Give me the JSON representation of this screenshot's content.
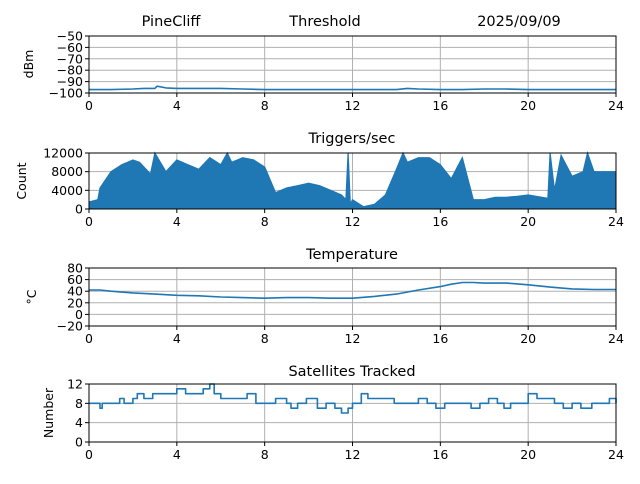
{
  "header": {
    "station": "PineCliff",
    "title": "Threshold",
    "date": "2025/09/09"
  },
  "style": {
    "line_color": "#1f77b4",
    "grid_color": "#b0b0b0"
  },
  "chart_data": [
    {
      "type": "line",
      "title": "",
      "xlabel": "",
      "ylabel": "dBm",
      "xlim": [
        0,
        24
      ],
      "ylim": [
        -100,
        -50
      ],
      "xticks": [
        0,
        4,
        8,
        12,
        16,
        20,
        24
      ],
      "yticks": [
        -100,
        -90,
        -80,
        -70,
        -60,
        -50
      ],
      "yticklabels": [
        "−100",
        "−90",
        "−80",
        "−70",
        "−60",
        "−50"
      ],
      "grid": true,
      "x": [
        0,
        1,
        2,
        2.5,
        3,
        3.1,
        3.5,
        4,
        5,
        6,
        7,
        8,
        9,
        10,
        11,
        12,
        13,
        14,
        14.5,
        15,
        16,
        17,
        18,
        19,
        20,
        21,
        22,
        23,
        24
      ],
      "y": [
        -97,
        -97,
        -96.5,
        -96,
        -96,
        -94,
        -95.5,
        -96,
        -96,
        -96,
        -96.5,
        -97,
        -97,
        -97,
        -97,
        -97,
        -97,
        -97,
        -96,
        -96.5,
        -97,
        -97,
        -96.5,
        -96.5,
        -97,
        -97,
        -97,
        -97,
        -97
      ]
    },
    {
      "type": "area",
      "title": "Triggers/sec",
      "xlabel": "",
      "ylabel": "Count",
      "xlim": [
        0,
        24
      ],
      "ylim": [
        0,
        12000
      ],
      "xticks": [
        0,
        4,
        8,
        12,
        16,
        20,
        24
      ],
      "yticks": [
        0,
        4000,
        8000,
        12000
      ],
      "yticklabels": [
        "0",
        "4000",
        "8000",
        "12000"
      ],
      "grid": true,
      "x": [
        0,
        0.4,
        0.5,
        1,
        1.5,
        2,
        2.3,
        2.8,
        3,
        3.5,
        4,
        4.5,
        5,
        5.5,
        6,
        6.3,
        6.5,
        7,
        7.5,
        8,
        8.5,
        9,
        9.5,
        10,
        10.5,
        11,
        11.5,
        11.7,
        11.8,
        11.9,
        12,
        12.5,
        13,
        13.5,
        14,
        14.3,
        14.5,
        15,
        15.5,
        16,
        16.5,
        17,
        17.5,
        18,
        18.5,
        19,
        19.5,
        20,
        20.5,
        20.9,
        21,
        21.2,
        21.5,
        22,
        22.5,
        22.7,
        23,
        23.5,
        24
      ],
      "y": [
        1500,
        2000,
        4500,
        8000,
        9500,
        10500,
        10000,
        7500,
        12000,
        8000,
        10500,
        9500,
        8500,
        11000,
        9500,
        12000,
        10000,
        11000,
        10500,
        9000,
        3500,
        4500,
        5000,
        5500,
        5000,
        4000,
        3000,
        2000,
        12000,
        1000,
        2000,
        500,
        1000,
        3000,
        8500,
        12000,
        10000,
        11000,
        11000,
        9500,
        6500,
        11000,
        2000,
        2000,
        2500,
        2500,
        2700,
        3000,
        2600,
        2300,
        12000,
        4000,
        11500,
        7000,
        8000,
        12000,
        8000,
        8000,
        8000
      ]
    },
    {
      "type": "line",
      "title": "Temperature",
      "xlabel": "",
      "ylabel": "°C",
      "xlim": [
        0,
        24
      ],
      "ylim": [
        -20,
        80
      ],
      "xticks": [
        0,
        4,
        8,
        12,
        16,
        20,
        24
      ],
      "yticks": [
        -20,
        0,
        20,
        40,
        60,
        80
      ],
      "yticklabels": [
        "−20",
        "0",
        "20",
        "40",
        "60",
        "80"
      ],
      "grid": true,
      "x": [
        0,
        0.5,
        1,
        2,
        3,
        4,
        5,
        6,
        7,
        8,
        9,
        10,
        11,
        12,
        13,
        14,
        15,
        16,
        16.5,
        17,
        17.5,
        18,
        19,
        20,
        21,
        22,
        23,
        24
      ],
      "y": [
        42,
        42,
        40,
        37,
        35,
        33,
        32,
        30,
        29,
        28,
        29,
        29,
        28,
        28,
        31,
        35,
        42,
        48,
        52,
        55,
        55,
        54,
        54,
        51,
        47,
        44,
        43,
        43
      ]
    },
    {
      "type": "line",
      "title": "Satellites Tracked",
      "xlabel": "",
      "ylabel": "Number",
      "xlim": [
        0,
        24
      ],
      "ylim": [
        0,
        12
      ],
      "xticks": [
        0,
        4,
        8,
        12,
        16,
        20,
        24
      ],
      "yticks": [
        0,
        4,
        8,
        12
      ],
      "yticklabels": [
        "0",
        "4",
        "8",
        "12"
      ],
      "grid": true,
      "step": true,
      "x": [
        0,
        0.3,
        0.5,
        0.6,
        0.8,
        1.0,
        1.4,
        1.6,
        2.0,
        2.2,
        2.5,
        2.7,
        2.9,
        3.3,
        3.6,
        4.0,
        4.4,
        4.8,
        5.2,
        5.5,
        5.7,
        6.0,
        6.5,
        7.0,
        7.2,
        7.6,
        8.0,
        8.5,
        9.0,
        9.2,
        9.5,
        9.9,
        10.4,
        10.8,
        11.2,
        11.5,
        11.8,
        12.0,
        12.4,
        12.7,
        13.1,
        13.5,
        13.9,
        14.2,
        14.6,
        15.0,
        15.4,
        15.8,
        16.2,
        16.6,
        17.0,
        17.4,
        17.8,
        18.2,
        18.6,
        18.9,
        19.2,
        19.6,
        20.0,
        20.4,
        20.8,
        21.2,
        21.6,
        22.0,
        22.4,
        22.9,
        23.3,
        23.7,
        24.0
      ],
      "y": [
        8,
        8,
        7,
        8,
        8,
        8,
        9,
        8,
        9,
        10,
        9,
        9,
        10,
        10,
        10,
        11,
        10,
        10,
        11,
        12,
        10,
        9,
        9,
        9,
        10,
        8,
        8,
        9,
        8,
        7,
        8,
        9,
        7,
        8,
        7,
        6,
        7,
        8,
        10,
        9,
        9,
        9,
        8,
        8,
        8,
        9,
        8,
        7,
        8,
        8,
        8,
        7,
        8,
        9,
        8,
        7,
        8,
        8,
        10,
        9,
        9,
        8,
        7,
        8,
        7,
        8,
        8,
        9,
        8
      ]
    }
  ]
}
